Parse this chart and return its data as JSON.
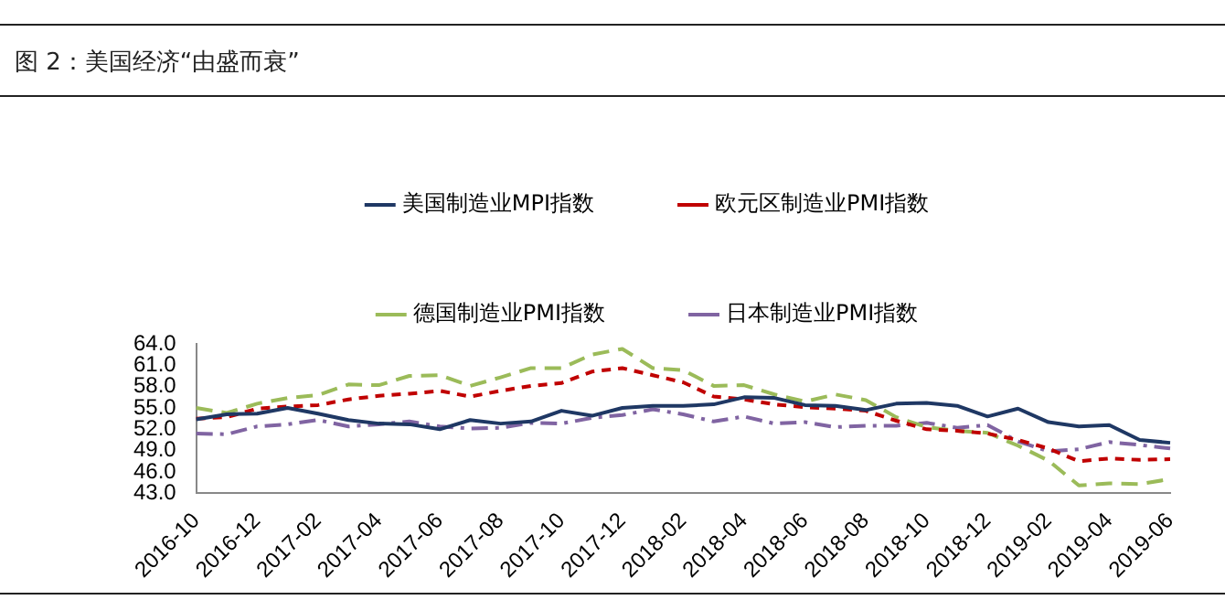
{
  "chart_data": {
    "type": "line",
    "title": "图 2：美国经济“由盛而衰”",
    "categories": [
      "2016-10",
      null,
      "2016-12",
      null,
      "2017-02",
      null,
      "2017-04",
      null,
      "2017-06",
      null,
      "2017-08",
      null,
      "2017-10",
      null,
      "2017-12",
      null,
      "2018-02",
      null,
      "2018-04",
      null,
      "2018-06",
      null,
      "2018-08",
      null,
      "2018-10",
      null,
      "2018-12",
      null,
      "2019-02",
      null,
      "2019-04",
      null,
      "2019-06"
    ],
    "series": [
      {
        "name": "美国制造业MPI指数",
        "color": "#1f3864",
        "line_style": "solid",
        "values": [
          53.4,
          54.1,
          54.2,
          55.0,
          54.2,
          53.3,
          52.8,
          52.7,
          52.0,
          53.3,
          52.8,
          53.1,
          54.6,
          53.9,
          55.0,
          55.3,
          55.3,
          55.5,
          56.5,
          56.4,
          55.4,
          55.3,
          54.7,
          55.6,
          55.7,
          55.3,
          53.8,
          54.9,
          53.0,
          52.4,
          52.6,
          50.5,
          50.1
        ]
      },
      {
        "name": "欧元区制造业PMI指数",
        "color": "#c00000",
        "line_style": "dashed",
        "values": [
          53.5,
          53.7,
          54.9,
          55.2,
          55.4,
          56.2,
          56.7,
          57.0,
          57.4,
          56.6,
          57.4,
          58.1,
          58.5,
          60.1,
          60.6,
          59.6,
          58.6,
          56.6,
          56.2,
          55.5,
          55.1,
          54.9,
          54.6,
          53.2,
          52.0,
          51.8,
          51.4,
          50.5,
          49.3,
          47.5,
          47.9,
          47.7,
          47.8
        ]
      },
      {
        "name": "德国制造业PMI指数",
        "color": "#9bbb59",
        "line_style": "longdash",
        "values": [
          55.0,
          54.3,
          55.6,
          56.4,
          56.8,
          58.3,
          58.2,
          59.5,
          59.6,
          58.1,
          59.3,
          60.6,
          60.6,
          62.5,
          63.3,
          60.6,
          60.3,
          58.1,
          58.2,
          56.9,
          55.9,
          56.9,
          56.1,
          53.7,
          52.3,
          51.8,
          51.5,
          49.7,
          47.6,
          44.1,
          44.4,
          44.3,
          45.0
        ]
      },
      {
        "name": "日本制造业PMI指数",
        "color": "#8064a2",
        "line_style": "dashdot",
        "values": [
          51.4,
          51.3,
          52.4,
          52.7,
          53.3,
          52.4,
          52.7,
          53.1,
          52.4,
          52.1,
          52.2,
          52.9,
          52.8,
          53.6,
          54.0,
          54.8,
          54.1,
          53.1,
          53.8,
          52.8,
          53.0,
          52.3,
          52.5,
          52.5,
          52.9,
          52.2,
          52.6,
          50.3,
          48.9,
          49.2,
          50.2,
          49.8,
          49.3
        ]
      }
    ],
    "ylim": [
      43,
      64
    ],
    "yticks": [
      {
        "value": 43,
        "label": "43.0"
      },
      {
        "value": 46,
        "label": "46.0"
      },
      {
        "value": 49,
        "label": "49.0"
      },
      {
        "value": 52,
        "label": "52.0"
      },
      {
        "value": 55,
        "label": "55.0"
      },
      {
        "value": 58,
        "label": "58.0"
      },
      {
        "value": 61,
        "label": "61.0"
      },
      {
        "value": 64,
        "label": "64.0"
      }
    ],
    "grid": false,
    "legend": "top",
    "marker": "none"
  }
}
